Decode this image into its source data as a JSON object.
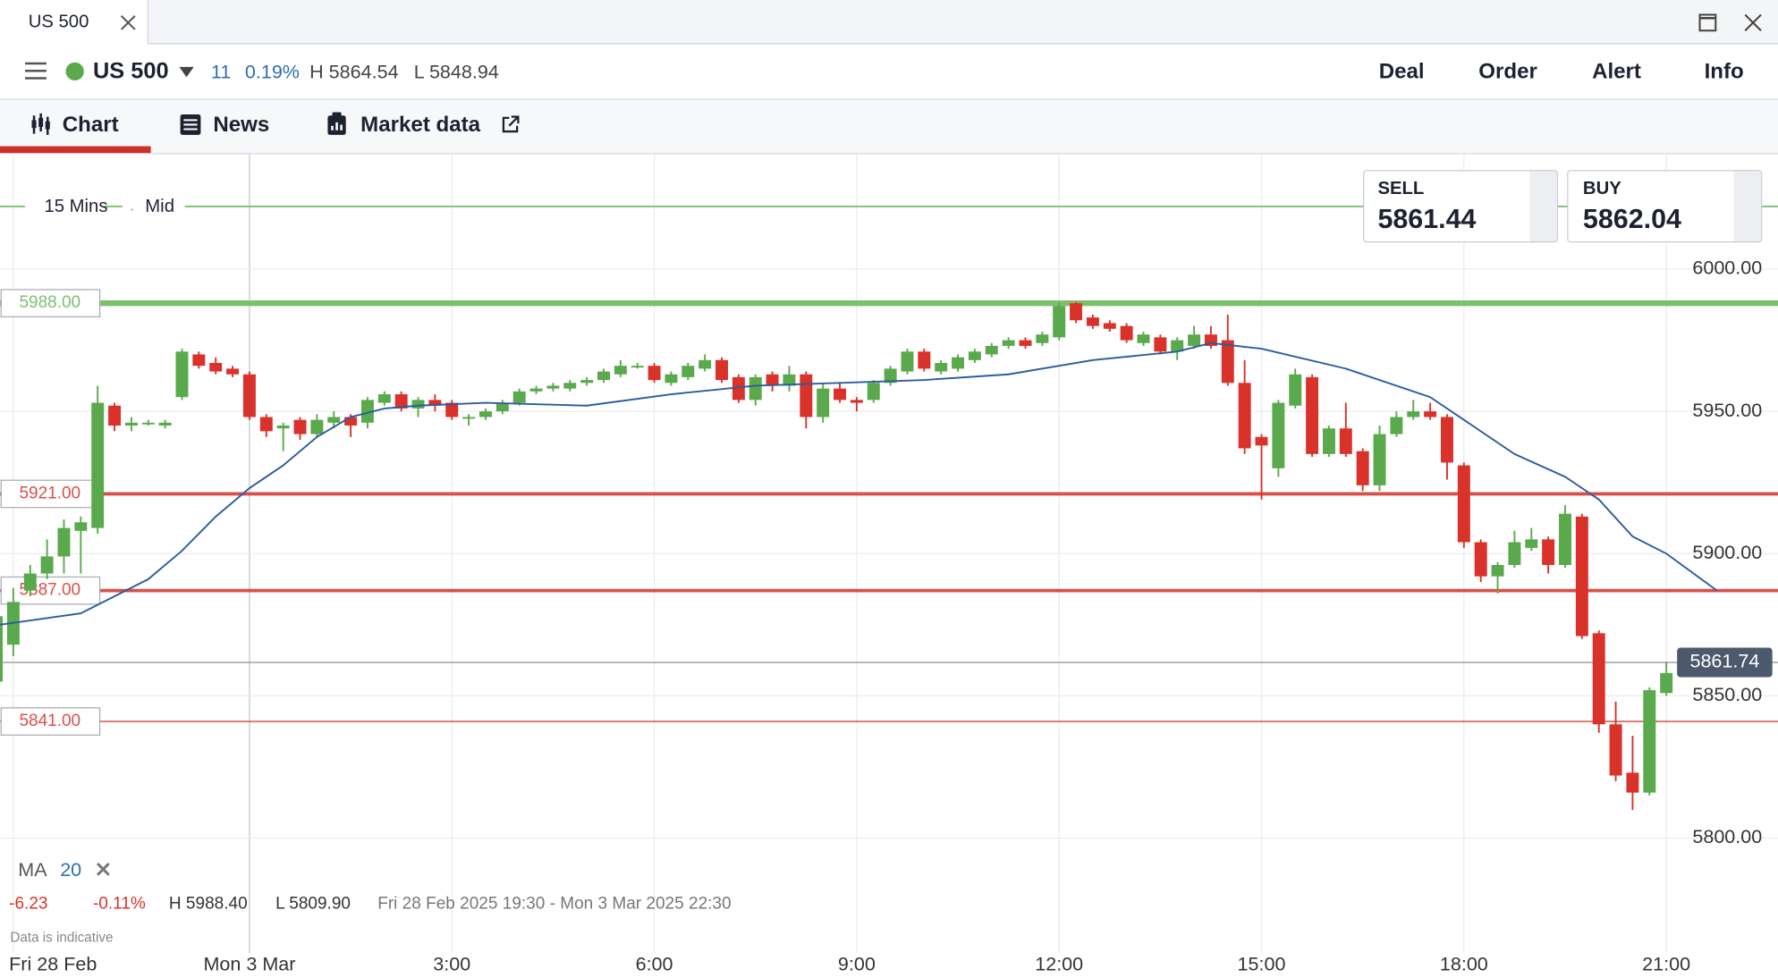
{
  "window": {
    "tab_title": "US 500"
  },
  "header": {
    "instrument": "US 500",
    "change": "11",
    "change_percent": "0.19%",
    "high": "H 5864.54",
    "low": "L 5848.94",
    "actions": [
      "Deal",
      "Order",
      "Alert",
      "Info"
    ]
  },
  "tabs": [
    "Chart",
    "News",
    "Market data"
  ],
  "quote": {
    "sell_label": "SELL",
    "sell": "5861.44",
    "buy_label": "BUY",
    "buy": "5862.04"
  },
  "chart_data": {
    "type": "candlestick",
    "interval": "15 Mins",
    "price": "Mid",
    "up_color": "#5aa94c",
    "down_color": "#d9322b",
    "xlim": [
      -14.79,
      90.62
    ],
    "ylim": [
      5760,
      6040
    ],
    "xticks": [
      {
        "value": -14,
        "label": "Fri 28 Feb"
      },
      {
        "value": 0,
        "label": "Mon 3 Mar"
      },
      {
        "value": 12,
        "label": "3:00"
      },
      {
        "value": 24,
        "label": "6:00"
      },
      {
        "value": 36,
        "label": "9:00"
      },
      {
        "value": 48,
        "label": "12:00"
      },
      {
        "value": 60,
        "label": "15:00"
      },
      {
        "value": 72,
        "label": "18:00"
      },
      {
        "value": 84,
        "label": "21:00"
      }
    ],
    "yticks": [
      {
        "value": 5800,
        "label": "5800.00"
      },
      {
        "value": 5850,
        "label": "5850.00"
      },
      {
        "value": 5900,
        "label": "5900.00"
      },
      {
        "value": 5950,
        "label": "5950.00"
      },
      {
        "value": 6000,
        "label": "6000.00"
      }
    ],
    "grid": true,
    "x": [
      -15,
      -14,
      -13,
      -12,
      -11,
      -10,
      -9,
      -8,
      -7,
      -6,
      -5,
      -4,
      -3,
      -2,
      -1,
      0,
      1,
      2,
      3,
      4,
      5,
      6,
      7,
      8,
      9,
      10,
      11,
      12,
      13,
      14,
      15,
      16,
      17,
      18,
      19,
      20,
      21,
      22,
      23,
      24,
      25,
      26,
      27,
      28,
      29,
      30,
      31,
      32,
      33,
      34,
      35,
      36,
      37,
      38,
      39,
      40,
      41,
      42,
      43,
      44,
      45,
      46,
      47,
      48,
      49,
      50,
      51,
      52,
      53,
      54,
      55,
      56,
      57,
      58,
      59,
      60,
      61,
      62,
      63,
      64,
      65,
      66,
      67,
      68,
      69,
      70,
      71,
      72,
      73,
      74,
      75,
      76,
      77,
      78,
      79,
      80,
      81,
      82,
      83,
      84
    ],
    "open": [
      5855,
      5868,
      5887,
      5893,
      5899,
      5908,
      5909,
      5952,
      5945,
      5945.5,
      5945,
      5955,
      5970,
      5967,
      5965,
      5963,
      5948,
      5944,
      5947,
      5942,
      5946,
      5948,
      5946,
      5953,
      5956,
      5951,
      5954,
      5953,
      5948,
      5948,
      5950,
      5953,
      5957,
      5958,
      5958,
      5960,
      5961,
      5963,
      5966,
      5966,
      5960,
      5962,
      5965,
      5968,
      5962,
      5954,
      5963,
      5959,
      5963,
      5948,
      5958,
      5954,
      5954,
      5960,
      5964,
      5971,
      5964,
      5965,
      5968,
      5970,
      5973,
      5975,
      5974,
      5976,
      5988,
      5983,
      5981,
      5980,
      5974,
      5976,
      5971,
      5973,
      5977,
      5975,
      5960,
      5941,
      5930,
      5952,
      5962,
      5935,
      5944,
      5936,
      5924,
      5942,
      5948,
      5950,
      5948,
      5931,
      5904,
      5892,
      5896,
      5902,
      5905,
      5896,
      5913,
      5872,
      5840,
      5823,
      5816,
      5851
    ],
    "high": [
      5880,
      5888,
      5896,
      5905,
      5912,
      5913,
      5959,
      5953,
      5948,
      5947,
      5947,
      5972,
      5971,
      5969,
      5966,
      5964,
      5949,
      5946,
      5948,
      5949,
      5950,
      5949,
      5955,
      5957,
      5957,
      5955,
      5956,
      5954,
      5949,
      5951,
      5954,
      5958,
      5959,
      5960,
      5961,
      5962,
      5965,
      5968,
      5967,
      5967,
      5964,
      5967,
      5970,
      5969,
      5963,
      5963,
      5964,
      5966,
      5964,
      5960,
      5960,
      5955,
      5961,
      5966,
      5972,
      5972,
      5968,
      5970,
      5972,
      5974,
      5976,
      5976,
      5978,
      5988.4,
      5988.4,
      5984,
      5982,
      5981,
      5978,
      5977,
      5976,
      5980,
      5980,
      5984,
      5968,
      5942,
      5954,
      5965,
      5963,
      5945,
      5953,
      5937,
      5945,
      5950,
      5954,
      5953,
      5949,
      5932,
      5905,
      5897,
      5908,
      5909,
      5906,
      5917,
      5914,
      5873,
      5848,
      5836,
      5853,
      5862
    ],
    "low": [
      5852,
      5864,
      5885,
      5891,
      5893,
      5893,
      5907,
      5943,
      5943,
      5945,
      5944,
      5954,
      5965,
      5963,
      5962,
      5947,
      5941,
      5936,
      5940,
      5941,
      5944,
      5941,
      5944,
      5952,
      5950,
      5948,
      5950,
      5947,
      5945,
      5947,
      5949,
      5952,
      5956,
      5957,
      5957,
      5959,
      5960,
      5962,
      5965,
      5960,
      5959,
      5961,
      5964,
      5960,
      5953,
      5952,
      5957,
      5957,
      5944,
      5946,
      5953,
      5950,
      5953,
      5959,
      5963,
      5964,
      5963,
      5964,
      5967,
      5969,
      5972,
      5972,
      5973,
      5975,
      5981,
      5979,
      5978,
      5974,
      5973,
      5970,
      5968,
      5972,
      5972,
      5959,
      5935,
      5919,
      5927,
      5951,
      5934,
      5934,
      5934,
      5922,
      5922,
      5941,
      5947,
      5947,
      5926,
      5902,
      5890,
      5886,
      5895,
      5901,
      5893,
      5895,
      5870,
      5837,
      5820,
      5809.9,
      5815,
      5850
    ],
    "close": [
      5878,
      5883,
      5893,
      5899,
      5909,
      5911,
      5953,
      5945,
      5946,
      5946,
      5946,
      5971,
      5966,
      5964,
      5963,
      5948,
      5943,
      5945,
      5942,
      5947,
      5948,
      5945,
      5954,
      5956,
      5951,
      5954,
      5952,
      5948,
      5948,
      5950,
      5953,
      5957,
      5958,
      5959,
      5960,
      5961,
      5964,
      5966,
      5966,
      5961,
      5963,
      5966,
      5968,
      5961,
      5954,
      5962,
      5959,
      5963,
      5948,
      5958,
      5954,
      5953,
      5960,
      5965,
      5971,
      5965,
      5967,
      5969,
      5971,
      5973,
      5975,
      5973,
      5977,
      5987,
      5982,
      5980,
      5979,
      5975,
      5977,
      5971,
      5975,
      5977,
      5973,
      5960,
      5937,
      5938,
      5953,
      5963,
      5935,
      5944,
      5935,
      5924,
      5942,
      5948,
      5950,
      5948,
      5932,
      5904,
      5892,
      5896,
      5904,
      5905,
      5896,
      5914,
      5871,
      5840,
      5822,
      5816,
      5852,
      5858
    ],
    "ma": {
      "name": "MA",
      "period": 20,
      "color": "#2b5c9e",
      "x": [
        -14.79,
        -10,
        -8,
        -6,
        -4,
        -2,
        0,
        2,
        4,
        6,
        8,
        10,
        14,
        20,
        25,
        30,
        35,
        40,
        45,
        50,
        55,
        57,
        60,
        65,
        70,
        72,
        75,
        78,
        80,
        82,
        84,
        87
      ],
      "values": [
        5875,
        5879,
        5885,
        5891,
        5901,
        5913,
        5923,
        5931,
        5941,
        5948,
        5951,
        5952,
        5953,
        5952,
        5956,
        5959,
        5960,
        5961,
        5963,
        5968,
        5971,
        5974,
        5972,
        5965,
        5955,
        5947,
        5935,
        5927,
        5919,
        5906,
        5900,
        5887
      ]
    },
    "levels": [
      {
        "value": 6022,
        "color": "#7cc06f",
        "line_width": 1.5
      },
      {
        "value": 5988,
        "label": "5988.00",
        "color": "#7cc06f",
        "line_width": 5
      },
      {
        "value": 5921,
        "label": "5921.00",
        "color": "#d9504b",
        "line_width": 3
      },
      {
        "value": 5887,
        "label": "5887.00",
        "color": "#d9504b",
        "line_width": 3
      },
      {
        "value": 5841,
        "label": "5841.00",
        "color": "#d9504b",
        "line_width": 1.2
      }
    ],
    "current_price": 5861.74,
    "stats": {
      "change": "-6.23",
      "change_percent": "-0.11%",
      "high": "H 5988.40",
      "low": "L 5809.90",
      "range": "Fri 28 Feb 2025 19:30 - Mon 3 Mar 2025 22:30"
    },
    "note": "Data is indicative"
  }
}
